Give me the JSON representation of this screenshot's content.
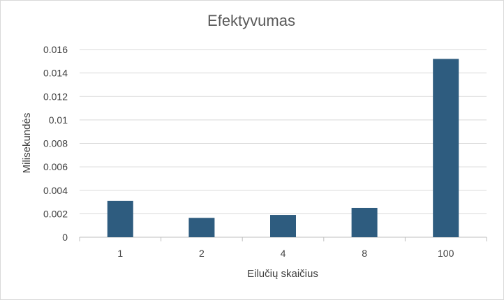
{
  "chart_data": {
    "type": "bar",
    "title": "Efektyvumas",
    "xlabel": "Eilučių skaičius",
    "ylabel": "Milisekundės",
    "categories": [
      "1",
      "2",
      "4",
      "8",
      "100"
    ],
    "values": [
      0.0031,
      0.00165,
      0.0019,
      0.0025,
      0.0152
    ],
    "ylim": [
      0,
      0.016
    ],
    "yticks": [
      "0",
      "0.002",
      "0.004",
      "0.006",
      "0.008",
      "0.01",
      "0.012",
      "0.014",
      "0.016"
    ],
    "grid": true,
    "bar_color": "#2e5c7f",
    "grid_color": "#d9d9d9"
  }
}
